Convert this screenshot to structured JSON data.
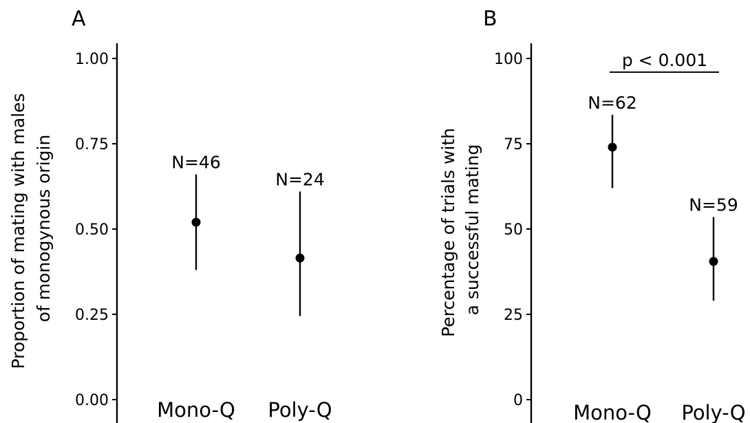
{
  "chart_data": [
    {
      "type": "scatter",
      "panel_label": "A",
      "ylabel_lines": [
        "Proportion of mating with males",
        "of monogynous origin"
      ],
      "categories": [
        "Mono-Q",
        "Poly-Q"
      ],
      "ylim": [
        0,
        1.05
      ],
      "yticks": [
        0.0,
        0.25,
        0.5,
        0.75,
        1.0
      ],
      "ytick_labels": [
        "0.00",
        "0.25",
        "0.50",
        "0.75",
        "1.00"
      ],
      "grid": false,
      "points": [
        {
          "category": "Mono-Q",
          "value": 0.52,
          "lower": 0.38,
          "upper": 0.66,
          "n_label": "N=46"
        },
        {
          "category": "Poly-Q",
          "value": 0.415,
          "lower": 0.245,
          "upper": 0.61,
          "n_label": "N=24"
        }
      ]
    },
    {
      "type": "scatter",
      "panel_label": "B",
      "ylabel_lines": [
        "Percentage of trials with",
        "a successful mating"
      ],
      "categories": [
        "Mono-Q",
        "Poly-Q"
      ],
      "ylim": [
        0,
        105
      ],
      "yticks": [
        0,
        25,
        50,
        75,
        100
      ],
      "ytick_labels": [
        "0",
        "25",
        "50",
        "75",
        "100"
      ],
      "grid": false,
      "points": [
        {
          "category": "Mono-Q",
          "value": 74,
          "lower": 62,
          "upper": 83.5,
          "n_label": "N=62"
        },
        {
          "category": "Poly-Q",
          "value": 40.5,
          "lower": 29,
          "upper": 53.5,
          "n_label": "N=59"
        }
      ],
      "significance": {
        "label": "p < 0.001",
        "between": [
          "Mono-Q",
          "Poly-Q"
        ],
        "y": 96
      }
    }
  ]
}
